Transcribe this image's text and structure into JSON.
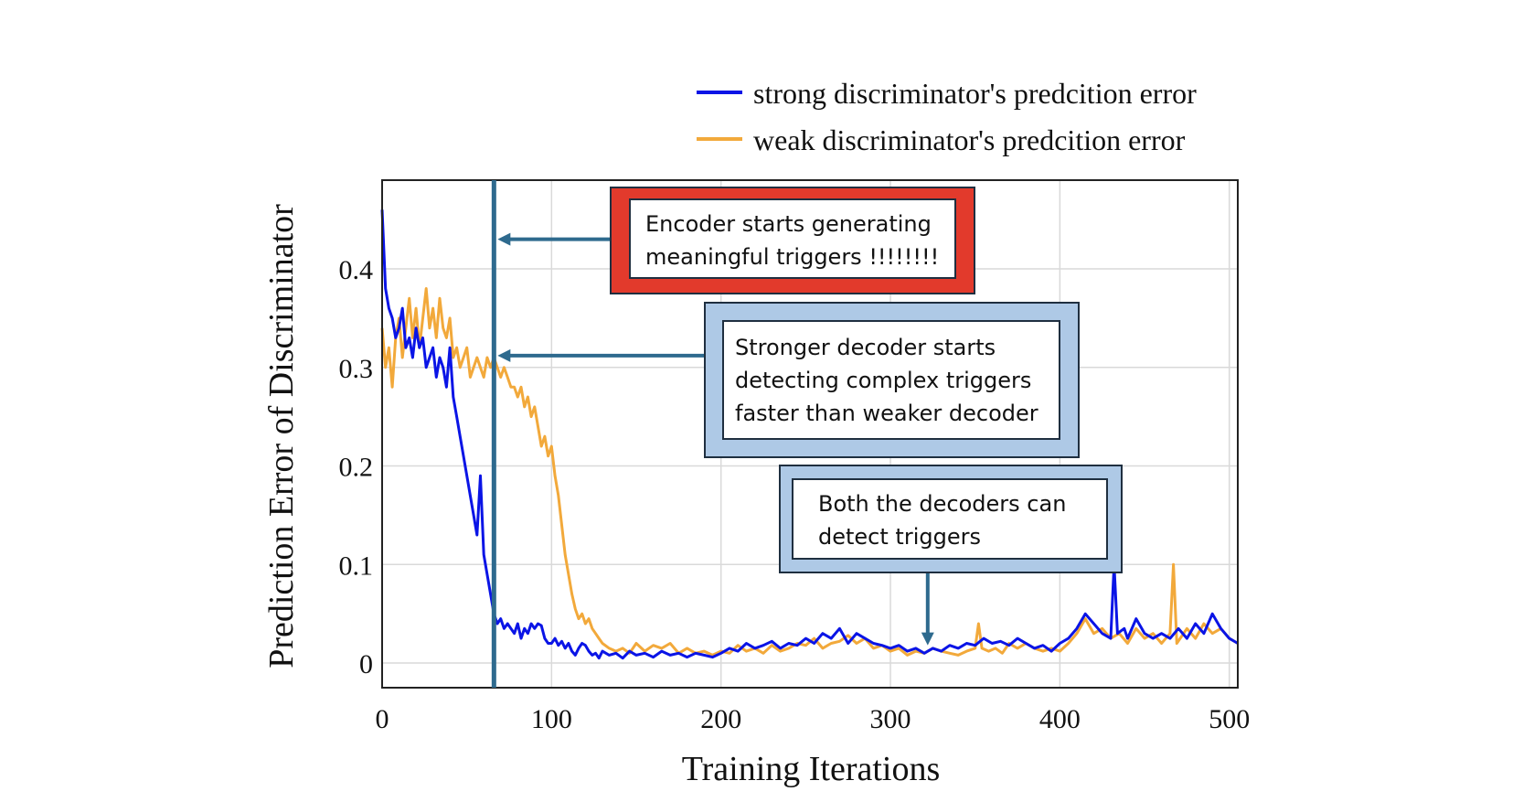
{
  "chart_data": {
    "type": "line",
    "title": "",
    "xlabel": "Training Iterations",
    "ylabel": "Prediction Error of Discriminator",
    "xlim": [
      0,
      505
    ],
    "ylim": [
      -0.025,
      0.49
    ],
    "xticks": [
      0,
      100,
      200,
      300,
      400,
      500
    ],
    "xtick_labels": [
      "0",
      "100",
      "200",
      "300",
      "400",
      "500"
    ],
    "yticks": [
      0,
      0.1,
      0.2,
      0.3,
      0.4
    ],
    "ytick_labels": [
      "0",
      "0.1",
      "0.2",
      "0.3",
      "0.4"
    ],
    "grid": true,
    "legend_position": "top-right, above plot",
    "series": [
      {
        "name": "strong discriminator's predcition error",
        "color": "#0a14e6",
        "points": [
          [
            0,
            0.46
          ],
          [
            2,
            0.38
          ],
          [
            4,
            0.36
          ],
          [
            6,
            0.35
          ],
          [
            8,
            0.33
          ],
          [
            10,
            0.34
          ],
          [
            12,
            0.36
          ],
          [
            14,
            0.32
          ],
          [
            16,
            0.33
          ],
          [
            18,
            0.31
          ],
          [
            20,
            0.34
          ],
          [
            22,
            0.32
          ],
          [
            24,
            0.33
          ],
          [
            26,
            0.3
          ],
          [
            28,
            0.31
          ],
          [
            30,
            0.32
          ],
          [
            32,
            0.29
          ],
          [
            34,
            0.31
          ],
          [
            36,
            0.3
          ],
          [
            38,
            0.28
          ],
          [
            40,
            0.32
          ],
          [
            42,
            0.27
          ],
          [
            44,
            0.25
          ],
          [
            46,
            0.23
          ],
          [
            48,
            0.21
          ],
          [
            50,
            0.19
          ],
          [
            52,
            0.17
          ],
          [
            54,
            0.15
          ],
          [
            56,
            0.13
          ],
          [
            58,
            0.19
          ],
          [
            60,
            0.11
          ],
          [
            62,
            0.09
          ],
          [
            64,
            0.07
          ],
          [
            66,
            0.05
          ],
          [
            68,
            0.04
          ],
          [
            70,
            0.045
          ],
          [
            72,
            0.035
          ],
          [
            74,
            0.04
          ],
          [
            76,
            0.035
          ],
          [
            78,
            0.03
          ],
          [
            80,
            0.04
          ],
          [
            82,
            0.025
          ],
          [
            84,
            0.035
          ],
          [
            86,
            0.03
          ],
          [
            88,
            0.04
          ],
          [
            90,
            0.035
          ],
          [
            92,
            0.04
          ],
          [
            94,
            0.038
          ],
          [
            96,
            0.025
          ],
          [
            98,
            0.02
          ],
          [
            100,
            0.02
          ],
          [
            102,
            0.025
          ],
          [
            104,
            0.018
          ],
          [
            106,
            0.022
          ],
          [
            108,
            0.015
          ],
          [
            110,
            0.02
          ],
          [
            112,
            0.012
          ],
          [
            114,
            0.008
          ],
          [
            116,
            0.015
          ],
          [
            118,
            0.02
          ],
          [
            120,
            0.018
          ],
          [
            122,
            0.012
          ],
          [
            124,
            0.008
          ],
          [
            126,
            0.01
          ],
          [
            128,
            0.005
          ],
          [
            130,
            0.012
          ],
          [
            134,
            0.008
          ],
          [
            138,
            0.01
          ],
          [
            142,
            0.005
          ],
          [
            146,
            0.012
          ],
          [
            150,
            0.008
          ],
          [
            155,
            0.01
          ],
          [
            160,
            0.006
          ],
          [
            165,
            0.012
          ],
          [
            170,
            0.008
          ],
          [
            175,
            0.01
          ],
          [
            180,
            0.006
          ],
          [
            185,
            0.01
          ],
          [
            190,
            0.008
          ],
          [
            195,
            0.006
          ],
          [
            200,
            0.01
          ],
          [
            205,
            0.015
          ],
          [
            210,
            0.012
          ],
          [
            215,
            0.02
          ],
          [
            220,
            0.015
          ],
          [
            225,
            0.018
          ],
          [
            230,
            0.022
          ],
          [
            235,
            0.015
          ],
          [
            240,
            0.02
          ],
          [
            245,
            0.018
          ],
          [
            250,
            0.025
          ],
          [
            255,
            0.02
          ],
          [
            260,
            0.03
          ],
          [
            265,
            0.025
          ],
          [
            270,
            0.035
          ],
          [
            275,
            0.02
          ],
          [
            280,
            0.03
          ],
          [
            285,
            0.025
          ],
          [
            290,
            0.02
          ],
          [
            295,
            0.018
          ],
          [
            300,
            0.015
          ],
          [
            305,
            0.018
          ],
          [
            310,
            0.012
          ],
          [
            315,
            0.015
          ],
          [
            320,
            0.01
          ],
          [
            325,
            0.015
          ],
          [
            330,
            0.012
          ],
          [
            335,
            0.018
          ],
          [
            340,
            0.015
          ],
          [
            345,
            0.02
          ],
          [
            350,
            0.018
          ],
          [
            355,
            0.025
          ],
          [
            360,
            0.02
          ],
          [
            365,
            0.022
          ],
          [
            370,
            0.018
          ],
          [
            375,
            0.025
          ],
          [
            380,
            0.02
          ],
          [
            385,
            0.015
          ],
          [
            390,
            0.018
          ],
          [
            395,
            0.012
          ],
          [
            400,
            0.02
          ],
          [
            405,
            0.025
          ],
          [
            410,
            0.035
          ],
          [
            415,
            0.05
          ],
          [
            420,
            0.04
          ],
          [
            425,
            0.03
          ],
          [
            430,
            0.025
          ],
          [
            432,
            0.1
          ],
          [
            434,
            0.03
          ],
          [
            438,
            0.035
          ],
          [
            440,
            0.025
          ],
          [
            445,
            0.045
          ],
          [
            450,
            0.03
          ],
          [
            455,
            0.025
          ],
          [
            460,
            0.03
          ],
          [
            465,
            0.025
          ],
          [
            470,
            0.035
          ],
          [
            475,
            0.025
          ],
          [
            480,
            0.04
          ],
          [
            485,
            0.03
          ],
          [
            490,
            0.05
          ],
          [
            495,
            0.035
          ],
          [
            500,
            0.025
          ],
          [
            505,
            0.02
          ]
        ]
      },
      {
        "name": "weak discriminator's predcition error",
        "color": "#f2a93b",
        "points": [
          [
            0,
            0.34
          ],
          [
            2,
            0.3
          ],
          [
            4,
            0.32
          ],
          [
            6,
            0.28
          ],
          [
            8,
            0.33
          ],
          [
            10,
            0.35
          ],
          [
            12,
            0.31
          ],
          [
            14,
            0.34
          ],
          [
            16,
            0.37
          ],
          [
            18,
            0.33
          ],
          [
            20,
            0.36
          ],
          [
            22,
            0.32
          ],
          [
            24,
            0.35
          ],
          [
            26,
            0.38
          ],
          [
            28,
            0.34
          ],
          [
            30,
            0.36
          ],
          [
            32,
            0.33
          ],
          [
            34,
            0.37
          ],
          [
            36,
            0.34
          ],
          [
            38,
            0.33
          ],
          [
            40,
            0.35
          ],
          [
            42,
            0.31
          ],
          [
            44,
            0.32
          ],
          [
            46,
            0.3
          ],
          [
            48,
            0.31
          ],
          [
            50,
            0.32
          ],
          [
            52,
            0.29
          ],
          [
            54,
            0.3
          ],
          [
            56,
            0.31
          ],
          [
            58,
            0.3
          ],
          [
            60,
            0.29
          ],
          [
            62,
            0.31
          ],
          [
            64,
            0.3
          ],
          [
            66,
            0.31
          ],
          [
            68,
            0.3
          ],
          [
            70,
            0.29
          ],
          [
            72,
            0.3
          ],
          [
            74,
            0.29
          ],
          [
            76,
            0.28
          ],
          [
            78,
            0.28
          ],
          [
            80,
            0.27
          ],
          [
            82,
            0.28
          ],
          [
            84,
            0.26
          ],
          [
            86,
            0.27
          ],
          [
            88,
            0.25
          ],
          [
            90,
            0.26
          ],
          [
            92,
            0.24
          ],
          [
            94,
            0.22
          ],
          [
            96,
            0.23
          ],
          [
            98,
            0.21
          ],
          [
            100,
            0.22
          ],
          [
            102,
            0.19
          ],
          [
            104,
            0.17
          ],
          [
            106,
            0.14
          ],
          [
            108,
            0.11
          ],
          [
            110,
            0.09
          ],
          [
            112,
            0.07
          ],
          [
            114,
            0.055
          ],
          [
            116,
            0.045
          ],
          [
            118,
            0.05
          ],
          [
            120,
            0.04
          ],
          [
            122,
            0.045
          ],
          [
            124,
            0.035
          ],
          [
            126,
            0.03
          ],
          [
            128,
            0.025
          ],
          [
            130,
            0.02
          ],
          [
            134,
            0.015
          ],
          [
            138,
            0.012
          ],
          [
            142,
            0.015
          ],
          [
            146,
            0.01
          ],
          [
            150,
            0.02
          ],
          [
            155,
            0.012
          ],
          [
            160,
            0.018
          ],
          [
            165,
            0.015
          ],
          [
            170,
            0.02
          ],
          [
            175,
            0.01
          ],
          [
            180,
            0.015
          ],
          [
            185,
            0.01
          ],
          [
            190,
            0.012
          ],
          [
            195,
            0.008
          ],
          [
            200,
            0.012
          ],
          [
            205,
            0.01
          ],
          [
            210,
            0.018
          ],
          [
            215,
            0.012
          ],
          [
            220,
            0.015
          ],
          [
            225,
            0.01
          ],
          [
            230,
            0.018
          ],
          [
            235,
            0.012
          ],
          [
            240,
            0.015
          ],
          [
            245,
            0.02
          ],
          [
            250,
            0.018
          ],
          [
            255,
            0.025
          ],
          [
            260,
            0.015
          ],
          [
            265,
            0.02
          ],
          [
            270,
            0.022
          ],
          [
            275,
            0.028
          ],
          [
            280,
            0.02
          ],
          [
            285,
            0.025
          ],
          [
            290,
            0.015
          ],
          [
            295,
            0.018
          ],
          [
            300,
            0.012
          ],
          [
            305,
            0.015
          ],
          [
            310,
            0.008
          ],
          [
            315,
            0.012
          ],
          [
            320,
            0.01
          ],
          [
            325,
            0.015
          ],
          [
            330,
            0.012
          ],
          [
            335,
            0.01
          ],
          [
            340,
            0.008
          ],
          [
            345,
            0.012
          ],
          [
            350,
            0.015
          ],
          [
            352,
            0.04
          ],
          [
            354,
            0.015
          ],
          [
            358,
            0.012
          ],
          [
            362,
            0.015
          ],
          [
            366,
            0.01
          ],
          [
            370,
            0.02
          ],
          [
            375,
            0.015
          ],
          [
            380,
            0.02
          ],
          [
            385,
            0.015
          ],
          [
            390,
            0.012
          ],
          [
            395,
            0.015
          ],
          [
            400,
            0.012
          ],
          [
            405,
            0.02
          ],
          [
            410,
            0.03
          ],
          [
            415,
            0.045
          ],
          [
            420,
            0.03
          ],
          [
            425,
            0.035
          ],
          [
            430,
            0.025
          ],
          [
            435,
            0.03
          ],
          [
            440,
            0.02
          ],
          [
            445,
            0.035
          ],
          [
            450,
            0.025
          ],
          [
            455,
            0.03
          ],
          [
            460,
            0.02
          ],
          [
            465,
            0.03
          ],
          [
            467,
            0.1
          ],
          [
            469,
            0.02
          ],
          [
            475,
            0.035
          ],
          [
            480,
            0.025
          ],
          [
            485,
            0.04
          ],
          [
            490,
            0.03
          ],
          [
            495,
            0.035
          ],
          [
            500,
            0.025
          ],
          [
            505,
            0.02
          ]
        ]
      }
    ],
    "reference_line": {
      "x": 66,
      "color": "#2e6a8e"
    },
    "annotations": [
      {
        "id": "a1",
        "lines": [
          "Encoder starts generating",
          "meaningful triggers !!!!!!!!"
        ],
        "box_color": "#e23a2c",
        "arrow_to": {
          "x": 66,
          "y": 0.43
        }
      },
      {
        "id": "a2",
        "lines": [
          "Stronger decoder starts",
          "detecting complex triggers",
          "faster than weaker decoder"
        ],
        "box_color": "#aec9e6",
        "arrow_to": {
          "x": 66,
          "y": 0.312
        }
      },
      {
        "id": "a3",
        "lines": [
          "Both the decoders can",
          "detect triggers"
        ],
        "box_color": "#aec9e6",
        "arrow_to": {
          "x": 322,
          "y": 0.018
        }
      }
    ]
  }
}
